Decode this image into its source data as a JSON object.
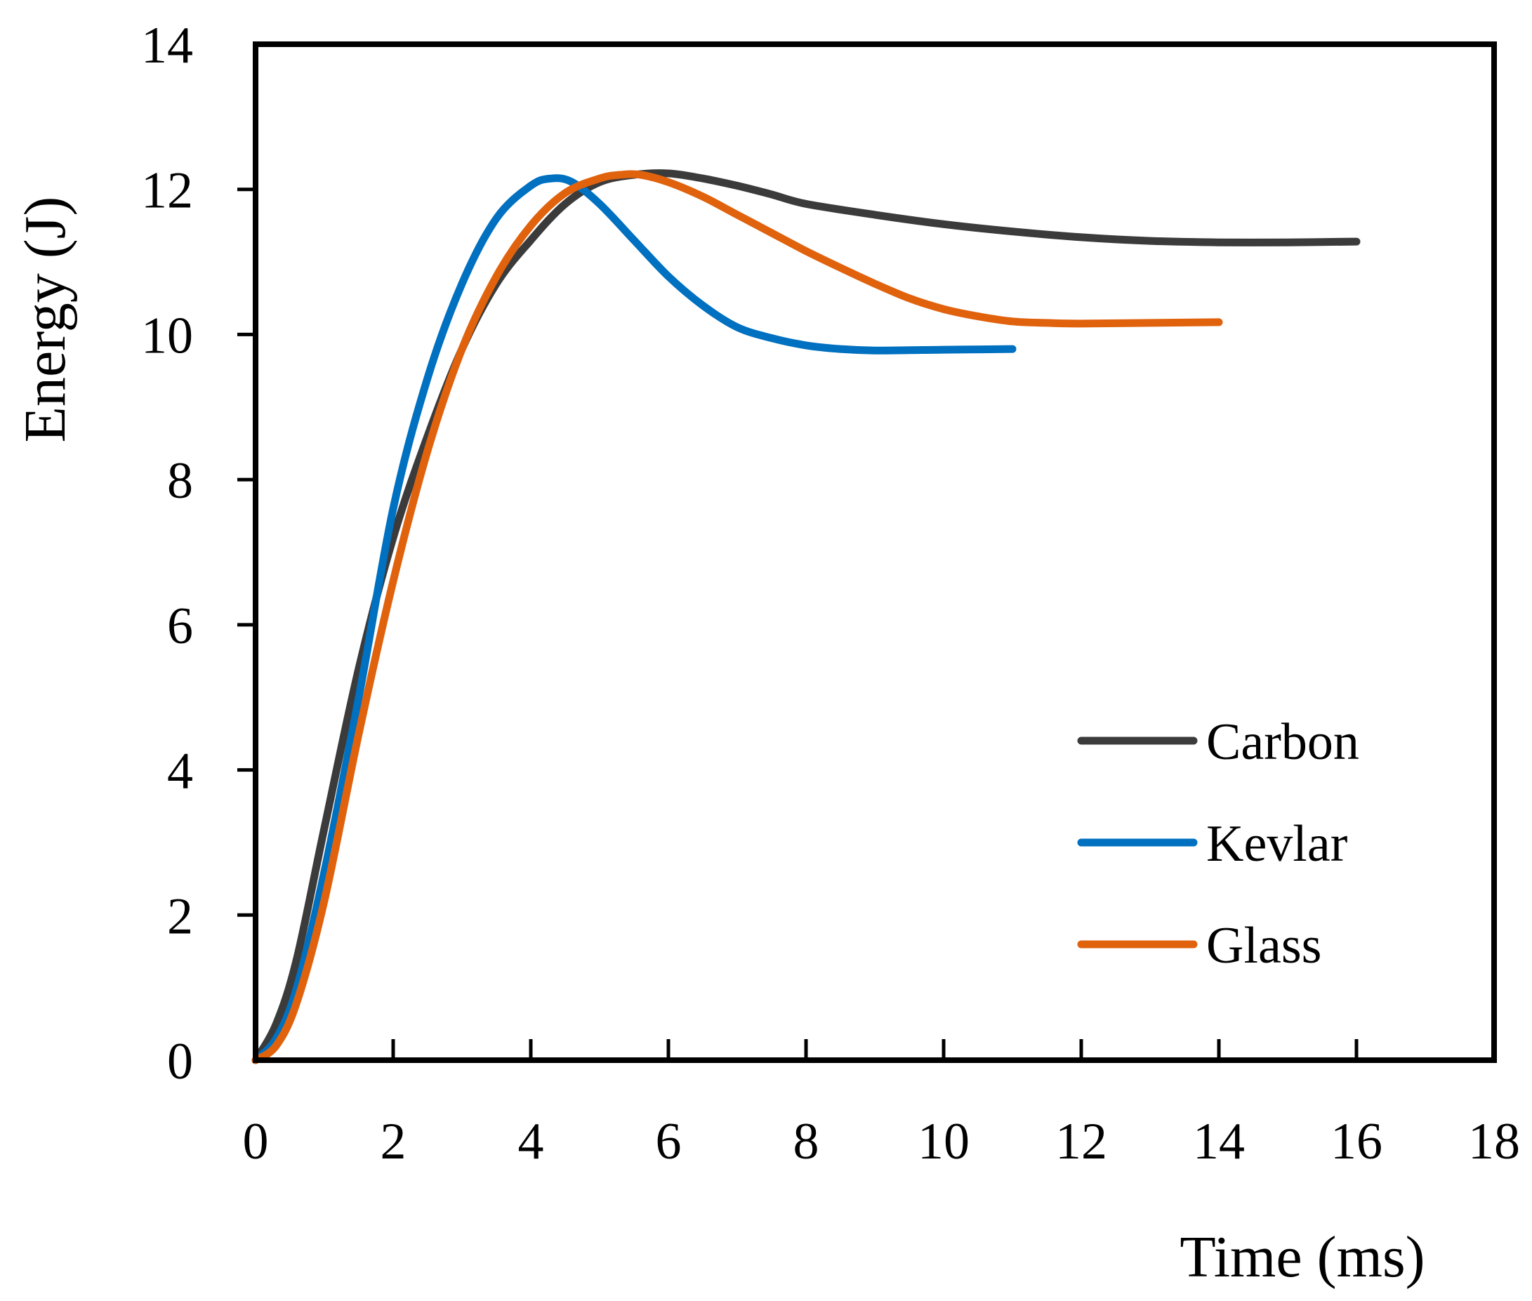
{
  "chart_data": {
    "type": "line",
    "title": "",
    "xlabel": "Time (ms)",
    "ylabel": "Energy (J)",
    "xlim": [
      0,
      18
    ],
    "ylim": [
      0,
      14
    ],
    "xticks": [
      0,
      2,
      4,
      6,
      8,
      10,
      12,
      14,
      16,
      18
    ],
    "yticks": [
      0,
      2,
      4,
      6,
      8,
      10,
      12,
      14
    ],
    "grid": false,
    "legend_position": "lower-right",
    "series": [
      {
        "name": "Carbon",
        "color": "#3b3b3b",
        "points": [
          [
            0,
            0
          ],
          [
            0.3,
            0.5
          ],
          [
            0.6,
            1.4
          ],
          [
            1.0,
            3.2
          ],
          [
            1.5,
            5.4
          ],
          [
            2.0,
            7.2
          ],
          [
            2.5,
            8.6
          ],
          [
            3.0,
            9.8
          ],
          [
            3.5,
            10.7
          ],
          [
            4.0,
            11.3
          ],
          [
            4.5,
            11.8
          ],
          [
            5.0,
            12.1
          ],
          [
            5.5,
            12.2
          ],
          [
            6.0,
            12.22
          ],
          [
            6.5,
            12.15
          ],
          [
            7.0,
            12.05
          ],
          [
            7.5,
            11.93
          ],
          [
            8.0,
            11.8
          ],
          [
            9.0,
            11.65
          ],
          [
            10.0,
            11.52
          ],
          [
            11.0,
            11.42
          ],
          [
            12.0,
            11.34
          ],
          [
            13.0,
            11.29
          ],
          [
            14.0,
            11.27
          ],
          [
            15.0,
            11.27
          ],
          [
            16.0,
            11.28
          ]
        ]
      },
      {
        "name": "Kevlar",
        "color": "#0070c0",
        "points": [
          [
            0,
            0
          ],
          [
            0.3,
            0.3
          ],
          [
            0.6,
            1.0
          ],
          [
            1.0,
            2.6
          ],
          [
            1.5,
            5.0
          ],
          [
            2.0,
            7.6
          ],
          [
            2.5,
            9.4
          ],
          [
            3.0,
            10.7
          ],
          [
            3.5,
            11.6
          ],
          [
            4.0,
            12.05
          ],
          [
            4.3,
            12.15
          ],
          [
            4.6,
            12.1
          ],
          [
            5.0,
            11.8
          ],
          [
            5.5,
            11.3
          ],
          [
            6.0,
            10.8
          ],
          [
            6.5,
            10.4
          ],
          [
            7.0,
            10.1
          ],
          [
            7.5,
            9.95
          ],
          [
            8.0,
            9.85
          ],
          [
            8.5,
            9.8
          ],
          [
            9.0,
            9.78
          ],
          [
            10.0,
            9.79
          ],
          [
            11.0,
            9.8
          ]
        ]
      },
      {
        "name": "Glass",
        "color": "#e0620d",
        "points": [
          [
            0,
            0
          ],
          [
            0.3,
            0.2
          ],
          [
            0.6,
            0.8
          ],
          [
            1.0,
            2.2
          ],
          [
            1.5,
            4.5
          ],
          [
            2.0,
            6.6
          ],
          [
            2.5,
            8.4
          ],
          [
            3.0,
            9.8
          ],
          [
            3.5,
            10.8
          ],
          [
            4.0,
            11.5
          ],
          [
            4.5,
            11.95
          ],
          [
            5.0,
            12.15
          ],
          [
            5.3,
            12.2
          ],
          [
            5.6,
            12.2
          ],
          [
            6.0,
            12.1
          ],
          [
            6.5,
            11.9
          ],
          [
            7.0,
            11.65
          ],
          [
            7.5,
            11.4
          ],
          [
            8.0,
            11.15
          ],
          [
            8.5,
            10.92
          ],
          [
            9.0,
            10.7
          ],
          [
            9.5,
            10.5
          ],
          [
            10.0,
            10.35
          ],
          [
            10.5,
            10.25
          ],
          [
            11.0,
            10.18
          ],
          [
            11.5,
            10.16
          ],
          [
            12.0,
            10.15
          ],
          [
            13.0,
            10.16
          ],
          [
            14.0,
            10.17
          ]
        ]
      }
    ]
  }
}
